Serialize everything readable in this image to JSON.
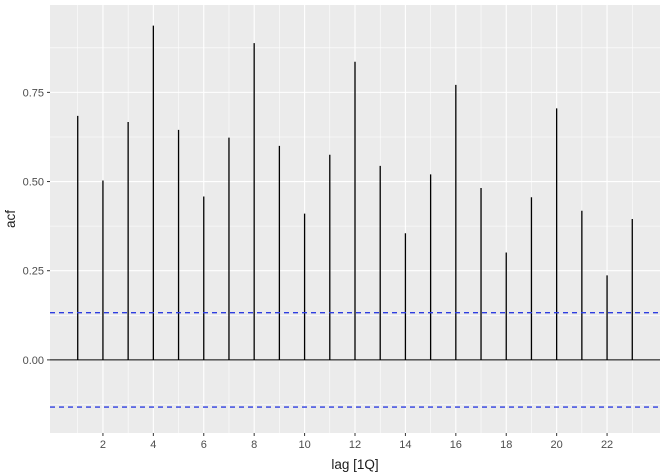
{
  "chart_data": {
    "type": "bar",
    "title": "",
    "xlabel": "lag [1Q]",
    "ylabel": "acf",
    "x": [
      1,
      2,
      3,
      4,
      5,
      6,
      7,
      8,
      9,
      10,
      11,
      12,
      13,
      14,
      15,
      16,
      17,
      18,
      19,
      20,
      21,
      22,
      23
    ],
    "values": [
      0.684,
      0.503,
      0.667,
      0.937,
      0.645,
      0.458,
      0.623,
      0.888,
      0.6,
      0.41,
      0.575,
      0.836,
      0.544,
      0.355,
      0.52,
      0.771,
      0.482,
      0.301,
      0.456,
      0.705,
      0.418,
      0.237,
      0.395
    ],
    "xlim": [
      -0.1,
      24.1
    ],
    "ylim": [
      -0.205,
      0.995
    ],
    "x_ticks": [
      2,
      4,
      6,
      8,
      10,
      12,
      14,
      16,
      18,
      20,
      22
    ],
    "x_tick_labels": [
      "2",
      "4",
      "6",
      "8",
      "10",
      "12",
      "14",
      "16",
      "18",
      "20",
      "22"
    ],
    "y_ticks": [
      0,
      0.25,
      0.5,
      0.75
    ],
    "y_tick_labels": [
      "0.00",
      "0.25",
      "0.50",
      "0.75"
    ],
    "confidence_bounds": [
      0.1323,
      -0.1323
    ],
    "grid": true,
    "colors": {
      "panel": "#ebebeb",
      "grid_major": "#ffffff",
      "bars": "#000000",
      "confidence": "#2d3de0",
      "text": "#4d4d4d"
    }
  }
}
